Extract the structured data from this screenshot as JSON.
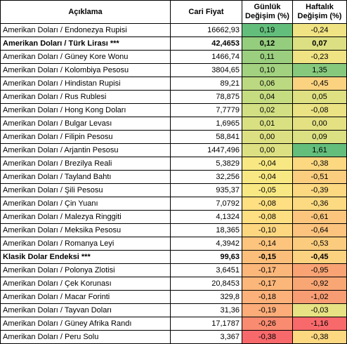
{
  "headers": {
    "name": "Açıklama",
    "price": "Cari Fiyat",
    "daily_line1": "Günlük",
    "daily_line2": "Değişim (%)",
    "weekly_line1": "Haftalık",
    "weekly_line2": "Değişim (%)"
  },
  "rows": [
    {
      "name": "Amerikan Doları / Endonezya Rupisi",
      "price": "16662,93",
      "daily": "0,19",
      "weekly": "-0,24",
      "bold": false,
      "daily_color": "#63be7b",
      "weekly_color": "#f0e383"
    },
    {
      "name": "Amerikan Doları / Türk Lirası ***",
      "price": "42,4653",
      "daily": "0,12",
      "weekly": "0,07",
      "bold": true,
      "daily_color": "#94cd7e",
      "weekly_color": "#dde082"
    },
    {
      "name": "Amerikan Doları / Güney Kore Wonu",
      "price": "1466,74",
      "daily": "0,11",
      "weekly": "-0,23",
      "bold": false,
      "daily_color": "#9bcf7f",
      "weekly_color": "#f0e383"
    },
    {
      "name": "Amerikan Doları / Kolombiya Pesosu",
      "price": "3804,65",
      "daily": "0,10",
      "weekly": "1,35",
      "bold": false,
      "daily_color": "#a2d17f",
      "weekly_color": "#86c97d"
    },
    {
      "name": "Amerikan Doları / Hindistan Rupisi",
      "price": "89,21",
      "daily": "0,06",
      "weekly": "-0,45",
      "bold": false,
      "daily_color": "#bbd981",
      "weekly_color": "#fbd380"
    },
    {
      "name": "Amerikan Doları / Rus Rublesi",
      "price": "78,875",
      "daily": "0,04",
      "weekly": "0,05",
      "bold": false,
      "daily_color": "#c6dc81",
      "weekly_color": "#dee082"
    },
    {
      "name": "Amerikan Doları / Hong Kong Doları",
      "price": "7,7779",
      "daily": "0,02",
      "weekly": "-0,08",
      "bold": false,
      "daily_color": "#d2df82",
      "weekly_color": "#eae283"
    },
    {
      "name": "Amerikan Doları / Bulgar Levası",
      "price": "1,6965",
      "daily": "0,01",
      "weekly": "0,00",
      "bold": false,
      "daily_color": "#d8e082",
      "weekly_color": "#e4e183"
    },
    {
      "name": "Amerikan Doları / Filipin Pesosu",
      "price": "58,841",
      "daily": "0,00",
      "weekly": "0,09",
      "bold": false,
      "daily_color": "#dde082",
      "weekly_color": "#dbe082"
    },
    {
      "name": "Amerikan Doları / Arjantin Pesosu",
      "price": "1447,496",
      "daily": "0,00",
      "weekly": "1,61",
      "bold": false,
      "daily_color": "#dde082",
      "weekly_color": "#63be7b"
    },
    {
      "name": "Amerikan Doları / Brezilya Reali",
      "price": "5,3829",
      "daily": "-0,04",
      "weekly": "-0,38",
      "bold": false,
      "daily_color": "#f8e883",
      "weekly_color": "#fcd881"
    },
    {
      "name": "Amerikan Doları / Tayland Bahtı",
      "price": "32,256",
      "daily": "-0,04",
      "weekly": "-0,51",
      "bold": false,
      "daily_color": "#f8e883",
      "weekly_color": "#fbcd7e"
    },
    {
      "name": "Amerikan Doları / Şili Pesosu",
      "price": "935,37",
      "daily": "-0,05",
      "weekly": "-0,39",
      "bold": false,
      "daily_color": "#f8e883",
      "weekly_color": "#fcd881"
    },
    {
      "name": "Amerikan Doları / Çin Yuanı",
      "price": "7,0792",
      "daily": "-0,08",
      "weekly": "-0,36",
      "bold": false,
      "daily_color": "#fedf81",
      "weekly_color": "#fcda81"
    },
    {
      "name": "Amerikan Doları / Malezya Ringgiti",
      "price": "4,1324",
      "daily": "-0,08",
      "weekly": "-0,61",
      "bold": false,
      "daily_color": "#fedf81",
      "weekly_color": "#fbc57d"
    },
    {
      "name": "Amerikan Doları / Meksika Pesosu",
      "price": "18,365",
      "daily": "-0,10",
      "weekly": "-0,64",
      "bold": false,
      "daily_color": "#fdd780",
      "weekly_color": "#fbc37d"
    },
    {
      "name": "Amerikan Doları / Romanya Leyi",
      "price": "4,3942",
      "daily": "-0,14",
      "weekly": "-0,53",
      "bold": false,
      "daily_color": "#fcc47d",
      "weekly_color": "#fbcc7e"
    },
    {
      "name": "Klasik Dolar Endeksi ***",
      "price": "99,63",
      "daily": "-0,15",
      "weekly": "-0,45",
      "bold": true,
      "daily_color": "#fcbf7b",
      "weekly_color": "#fbd380"
    },
    {
      "name": "Amerikan Doları / Polonya Zlotisi",
      "price": "3,6451",
      "daily": "-0,17",
      "weekly": "-0,95",
      "bold": false,
      "daily_color": "#fbb67a",
      "weekly_color": "#f9a374"
    },
    {
      "name": "Amerikan Doları / Çek Korunası",
      "price": "20,8453",
      "daily": "-0,17",
      "weekly": "-0,92",
      "bold": false,
      "daily_color": "#fbb67a",
      "weekly_color": "#f9a675"
    },
    {
      "name": "Amerikan Doları / Macar Forinti",
      "price": "329,8",
      "daily": "-0,18",
      "weekly": "-1,02",
      "bold": false,
      "daily_color": "#fbb179",
      "weekly_color": "#f89c73"
    },
    {
      "name": "Amerikan Doları / Tayvan Doları",
      "price": "31,36",
      "daily": "-0,19",
      "weekly": "-0,03",
      "bold": false,
      "daily_color": "#fbac78",
      "weekly_color": "#e7e283"
    },
    {
      "name": "Amerikan Doları / Güney Afrika Randı",
      "price": "17,1787",
      "daily": "-0,26",
      "weekly": "-1,16",
      "bold": false,
      "daily_color": "#f98b70",
      "weekly_color": "#f8696b"
    },
    {
      "name": "Amerikan Doları / Peru Solu",
      "price": "3,367",
      "daily": "-0,38",
      "weekly": "-0,38",
      "bold": false,
      "daily_color": "#f8696b",
      "weekly_color": "#fcd881"
    }
  ]
}
